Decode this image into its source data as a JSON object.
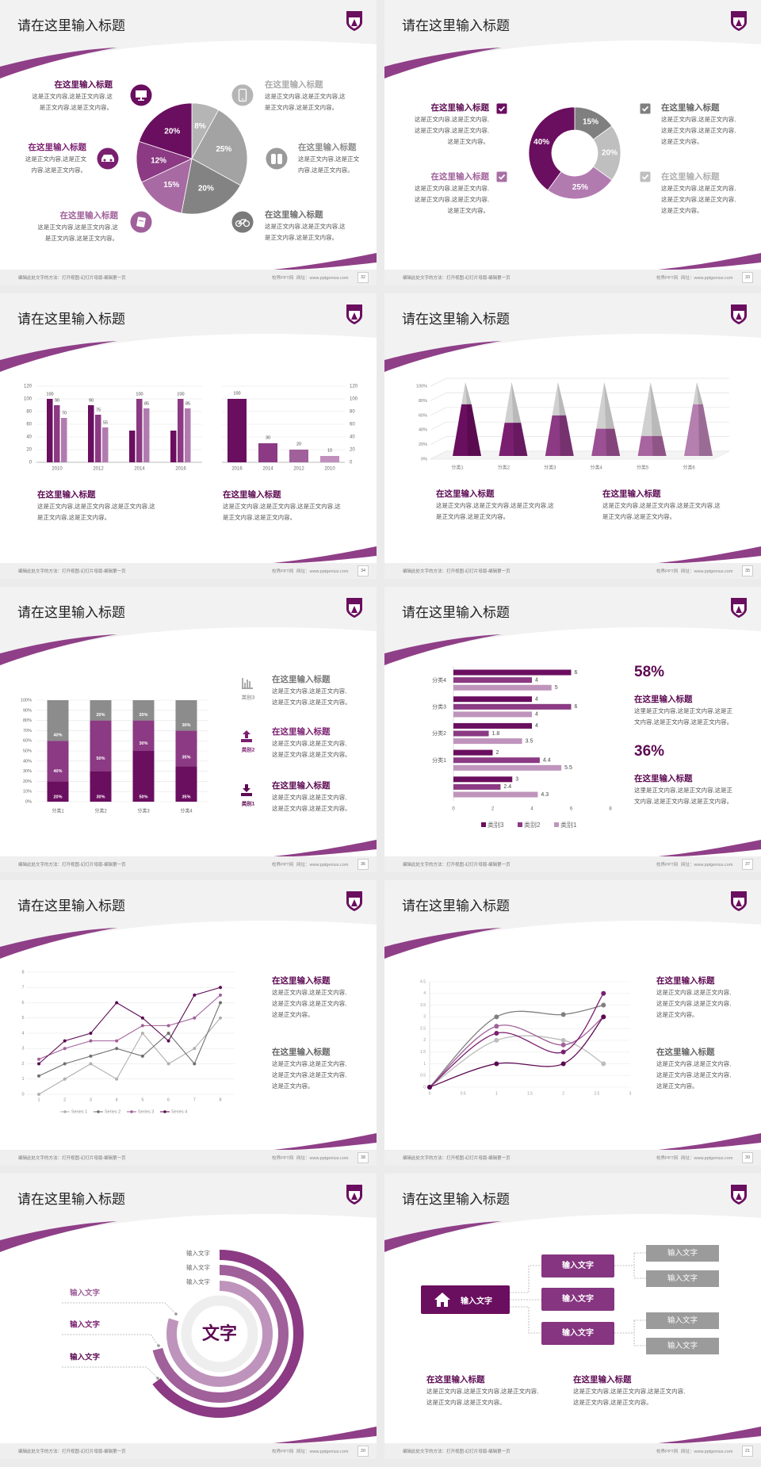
{
  "common": {
    "title": "请在这里输入标题",
    "footer_note": "编辑此处文字的方法：打开视图-幻灯片母版-编辑第一页",
    "footer_brand": "校界PPT网",
    "footer_url": "网址：www.pptgenius.com"
  },
  "colors": {
    "dark": "#6a0e5f",
    "mid": "#8b3a83",
    "light": "#b27bb0",
    "darkgray": "#6f6f6f",
    "gray": "#8c8c8c",
    "lightgray": "#bdbdbd",
    "swoosh": "#8f3f87"
  },
  "slides": [
    {
      "page": "32",
      "blocks": [
        {
          "heading": "在这里输入标题",
          "body": "这是正文内容,这是正文内容,这\n是正文内容,这是正文内容。",
          "color": "#5c0a52",
          "icon": "monitor-icon",
          "icon_color": "#6a0e5f"
        },
        {
          "heading": "在这里输入标题",
          "body": "这是正文内容,这是正文\n内容,这是正文内容。",
          "color": "#7a1f70",
          "icon": "car-icon",
          "icon_color": "#7a1f70"
        },
        {
          "heading": "在这里输入标题",
          "body": "这是正文内容,这是正文内容,这\n是正文内容,这是正文内容。",
          "color": "#a0609a",
          "icon": "book-icon",
          "icon_color": "#a0609a"
        },
        {
          "heading": "在这里输入标题",
          "body": "这是正文内容,这是正文内容,这\n是正文内容,这是正文内容。",
          "color": "#aaaaaa",
          "icon": "phone-icon",
          "icon_color": "#b5b5b5"
        },
        {
          "heading": "在这里输入标题",
          "body": "这是正文内容,这是正文\n内容,这是正文内容。",
          "color": "#8c8c8c",
          "icon": "binoculars-icon",
          "icon_color": "#9a9a9a"
        },
        {
          "heading": "在这里输入标题",
          "body": "这是正文内容,这是正文内容,这\n是正文内容,这是正文内容。",
          "color": "#6f6f6f",
          "icon": "bicycle-icon",
          "icon_color": "#7a7a7a"
        }
      ]
    },
    {
      "page": "33",
      "blocks": [
        {
          "heading": "在这里输入标题",
          "body": "这是正文内容,这是正文内容,\n这是正文内容,这是正文内容,\n这是正文内容。",
          "color": "#5c0a52",
          "check_color": "#6a0e5f"
        },
        {
          "heading": "在这里输入标题",
          "body": "这是正文内容,这是正文内容,\n这是正文内容,这是正文内容,\n这是正文内容。",
          "color": "#a0609a",
          "check_color": "#a870a3"
        },
        {
          "heading": "在这里输入标题",
          "body": "这是正文内容,这是正文内容,\n这是正文内容,这是正文内容,\n这是正文内容。",
          "color": "#666666",
          "check_color": "#7f7f7f"
        },
        {
          "heading": "在这里输入标题",
          "body": "这是正文内容,这是正文内容,\n这是正文内容,这是正文内容,\n这是正文内容。",
          "color": "#b0b0b0",
          "check_color": "#bfbfbf"
        }
      ]
    },
    {
      "page": "34",
      "blocks": [
        {
          "heading": "在这里输入标题",
          "body": "这是正文内容,这是正文内容,这是正文内容,这\n是正文内容,这是正文内容。"
        },
        {
          "heading": "在这里输入标题",
          "body": "这是正文内容,这是正文内容,这是正文内容,这\n是正文内容,这是正文内容。"
        }
      ]
    },
    {
      "page": "35",
      "blocks": [
        {
          "heading": "在这里输入标题",
          "body": "这是正文内容,这是正文内容,这是正文内容,这\n是正文内容,这是正文内容。"
        },
        {
          "heading": "在这里输入标题",
          "body": "这是正文内容,这是正文内容,这是正文内容,这\n是正文内容,这是正文内容。"
        }
      ]
    },
    {
      "page": "36",
      "items": [
        {
          "icon": "bar-chart-icon",
          "icon_label": "类别3",
          "heading": "在这里输入标题",
          "body": "这是正文内容,这是正文内容,\n这是正文内容,这是正文内容。",
          "color": "#777777"
        },
        {
          "icon": "upload-icon",
          "icon_label": "类别2",
          "heading": "在这里输入标题",
          "body": "这是正文内容,这是正文内容,\n这是正文内容,这是正文内容。",
          "color": "#7a1f70"
        },
        {
          "icon": "download-icon",
          "icon_label": "类别1",
          "heading": "在这里输入标题",
          "body": "这是正文内容,这是正文内容,\n这是正文内容,这是正文内容。",
          "color": "#5c0a52"
        }
      ]
    },
    {
      "page": "37",
      "stats": [
        {
          "value": "58%",
          "heading": "在这里输入标题",
          "body": "这里是正文内容,这是正文内容,这是正\n文内容,这是正文内容,这是正文内容。"
        },
        {
          "value": "36%",
          "heading": "在这里输入标题",
          "body": "这里是正文内容,这是正文内容,这是正\n文内容,这是正文内容,这是正文内容。"
        }
      ]
    },
    {
      "page": "38",
      "blocks": [
        {
          "heading": "在这里输入标题",
          "body": "这是正文内容,这是正文内容,\n这是正文内容,这是正文内容,\n这是正文内容。",
          "color": "#5c0a52"
        },
        {
          "heading": "在这里输入标题",
          "body": "这是正文内容,这是正文内容,\n这是正文内容,这是正文内容,\n这是正文内容。",
          "color": "#666666"
        }
      ]
    },
    {
      "page": "39",
      "blocks": [
        {
          "heading": "在这里输入标题",
          "body": "这是正文内容,这是正文内容,\n这是正文内容,这是正文内容,\n这是正文内容。",
          "color": "#5c0a52"
        },
        {
          "heading": "在这里输入标题",
          "body": "这是正文内容,这是正文内容,\n这是正文内容,这是正文内容,\n这是正文内容。",
          "color": "#666666"
        }
      ]
    },
    {
      "page": "20",
      "center_text": "文字",
      "ring_labels": [
        "输入文字",
        "输入文字",
        "输入文字"
      ],
      "side_labels": [
        {
          "text": "输入文字",
          "color": "#a0609a"
        },
        {
          "text": "输入文字",
          "color": "#7a1f70"
        },
        {
          "text": "输入文字",
          "color": "#5c0a52"
        }
      ],
      "ring_colors": [
        "#8b3a83",
        "#a0609a",
        "#bf94bc",
        "#eeeeee"
      ]
    },
    {
      "page": "21",
      "root": "输入文字",
      "mids": [
        "输入文字",
        "输入文字",
        "输入文字"
      ],
      "leaves": [
        "输入文字",
        "输入文字",
        "输入文字",
        "输入文字"
      ],
      "blocks": [
        {
          "heading": "在这里输入标题",
          "body": "这是正文内容,这是正文内容,这是正文内容,\n这是正文内容,这是正文内容。"
        },
        {
          "heading": "在这里输入标题",
          "body": "这是正文内容,这是正文内容,这是正文内容,\n这是正文内容,这是正文内容。"
        }
      ]
    }
  ],
  "chart_data": [
    {
      "type": "pie",
      "values": [
        8,
        25,
        20,
        15,
        12,
        20
      ],
      "labels": [
        "8%",
        "25%",
        "20%",
        "15%",
        "12%",
        "20%"
      ],
      "colors": [
        "#b5b5b5",
        "#a3a3a3",
        "#838383",
        "#a86aa2",
        "#8b3a83",
        "#6a0e5f"
      ]
    },
    {
      "type": "pie",
      "donut": true,
      "values": [
        15,
        20,
        25,
        40
      ],
      "labels": [
        "15%",
        "20%",
        "25%",
        "40%"
      ],
      "colors": [
        "#7f7f7f",
        "#bfbfbf",
        "#b27bb0",
        "#6a0e5f"
      ]
    },
    {
      "type": "bar",
      "categories": [
        "2010",
        "2012",
        "2014",
        "2016"
      ],
      "series": [
        {
          "values": [
            100,
            90,
            50,
            50
          ],
          "data_labels": [
            "100",
            "90",
            null,
            null
          ],
          "color": "#6a0e5f"
        },
        {
          "values": [
            90,
            75,
            100,
            100
          ],
          "data_labels": [
            "90",
            "75",
            "100",
            "100"
          ],
          "color": "#8b3a83"
        },
        {
          "values": [
            70,
            55,
            85,
            85
          ],
          "data_labels": [
            "70",
            "55",
            "85",
            "85"
          ],
          "color": "#b27bb0"
        }
      ],
      "ylim": [
        0,
        120
      ],
      "yticks": [
        "0",
        "20",
        "40",
        "60",
        "80",
        "100",
        "120"
      ],
      "grid": true,
      "axis_side": "left"
    },
    {
      "type": "bar",
      "categories": [
        "2016",
        "2014",
        "2012",
        "2010"
      ],
      "values": [
        100,
        30,
        20,
        10
      ],
      "data_labels": [
        "100",
        "30",
        "20",
        "10"
      ],
      "colors": [
        "#6a0e5f",
        "#8b3a83",
        "#a0609a",
        "#c08fbc"
      ],
      "ylim": [
        0,
        120
      ],
      "yticks": [
        "0",
        "20",
        "40",
        "60",
        "80",
        "100",
        "120"
      ],
      "grid": true,
      "axis_side": "right"
    },
    {
      "type": "bar",
      "style": "3d-pyramid",
      "categories": [
        "分类1",
        "分类2",
        "分类3",
        "分类4",
        "分类5",
        "分类6"
      ],
      "values": [
        70,
        45,
        55,
        37,
        27,
        70
      ],
      "ylim": [
        0,
        100
      ],
      "yticks": [
        "0%",
        "20%",
        "40%",
        "60%",
        "80%",
        "100%"
      ],
      "colors": [
        "#6a0e5f",
        "#7a1f70",
        "#8b3a83",
        "#9a5092",
        "#a8649f",
        "#b57fb0"
      ],
      "remainder_color": "#d0d0d0"
    },
    {
      "type": "bar",
      "stacked": true,
      "categories": [
        "分类1",
        "分类2",
        "分类3",
        "分类4"
      ],
      "series": [
        {
          "name": "类别1",
          "values": [
            20,
            30,
            50,
            35
          ],
          "labels": [
            "20%",
            "30%",
            "50%",
            "35%"
          ],
          "color": "#6a0e5f"
        },
        {
          "name": "类别2",
          "values": [
            40,
            50,
            30,
            35
          ],
          "labels": [
            "40%",
            "50%",
            "30%",
            "35%"
          ],
          "color": "#8b3a83"
        },
        {
          "name": "类别3",
          "values": [
            40,
            20,
            20,
            30
          ],
          "labels": [
            "40%",
            "20%",
            "20%",
            "30%"
          ],
          "color": "#8c8c8c"
        }
      ],
      "ylim": [
        0,
        100
      ],
      "yticks": [
        "0%",
        "10%",
        "20%",
        "30%",
        "40%",
        "50%",
        "60%",
        "70%",
        "80%",
        "90%",
        "100%"
      ],
      "grid": true
    },
    {
      "type": "bar",
      "orientation": "horizontal",
      "categories": [
        "分类4",
        "分类3",
        "分类2",
        "分类1",
        ""
      ],
      "series": [
        {
          "name": "类别3",
          "values": [
            6,
            4,
            4,
            2,
            3
          ],
          "labels": [
            "6",
            "4",
            "4",
            "2",
            "3"
          ],
          "color": "#6a0e5f"
        },
        {
          "name": "类别2",
          "values": [
            4,
            6,
            1.8,
            4.4,
            2.4
          ],
          "labels": [
            "4",
            "6",
            "1.8",
            "4.4",
            "2.4"
          ],
          "color": "#8b3a83"
        },
        {
          "name": "类别1",
          "values": [
            5,
            4,
            3.5,
            5.5,
            4.3
          ],
          "labels": [
            "5",
            "4",
            "3.5",
            "5.5",
            "4.3"
          ],
          "color": "#bf94bc"
        }
      ],
      "xlim": [
        0,
        8
      ],
      "xticks": [
        "0",
        "2",
        "4",
        "6",
        "8"
      ],
      "legend": "bottom"
    },
    {
      "type": "line",
      "x": [
        1,
        2,
        3,
        4,
        5,
        6,
        7,
        8
      ],
      "xticks": [
        "1",
        "2",
        "3",
        "4",
        "5",
        "6",
        "7",
        "8"
      ],
      "series": [
        {
          "name": "Series 1",
          "values": [
            0,
            1,
            2,
            1,
            4,
            2,
            3,
            5
          ],
          "color": "#b0b0b0"
        },
        {
          "name": "Series 2",
          "values": [
            1.2,
            2,
            2.5,
            3,
            2.5,
            4,
            2,
            6
          ],
          "color": "#6f6f6f"
        },
        {
          "name": "Series 3",
          "values": [
            2.3,
            3,
            3.5,
            3.5,
            4.5,
            4.5,
            5,
            6.5
          ],
          "color": "#a0609a"
        },
        {
          "name": "Series 4",
          "values": [
            2,
            3.5,
            4,
            6,
            5,
            3.5,
            6.5,
            7
          ],
          "color": "#5c0a52"
        }
      ],
      "ylim": [
        0,
        8
      ],
      "yticks": [
        "0",
        "1",
        "2",
        "3",
        "4",
        "5",
        "6",
        "7",
        "8"
      ],
      "grid": true,
      "legend": "bottom"
    },
    {
      "type": "scatter",
      "smooth": true,
      "x": [
        0,
        1,
        2,
        2.6
      ],
      "series": [
        {
          "values": [
            0,
            3,
            3.1,
            3.5
          ],
          "color": "#7f7f7f"
        },
        {
          "values": [
            0,
            2,
            2,
            1
          ],
          "color": "#bdbdbd"
        },
        {
          "values": [
            0,
            2.6,
            1.8,
            3
          ],
          "color": "#a0609a"
        },
        {
          "values": [
            0,
            2.3,
            1.5,
            4
          ],
          "color": "#7a1f70"
        },
        {
          "values": [
            0,
            1,
            1,
            3
          ],
          "color": "#5c0a52"
        }
      ],
      "xlim": [
        0,
        3
      ],
      "xticks": [
        "0",
        "0.5",
        "1",
        "1.5",
        "2",
        "2.5",
        "3"
      ],
      "ylim": [
        0,
        4.5
      ],
      "yticks": [
        "0",
        "0.5",
        "1",
        "1.5",
        "2",
        "2.5",
        "3",
        "3.5",
        "4",
        "4.5"
      ],
      "grid": true
    }
  ]
}
